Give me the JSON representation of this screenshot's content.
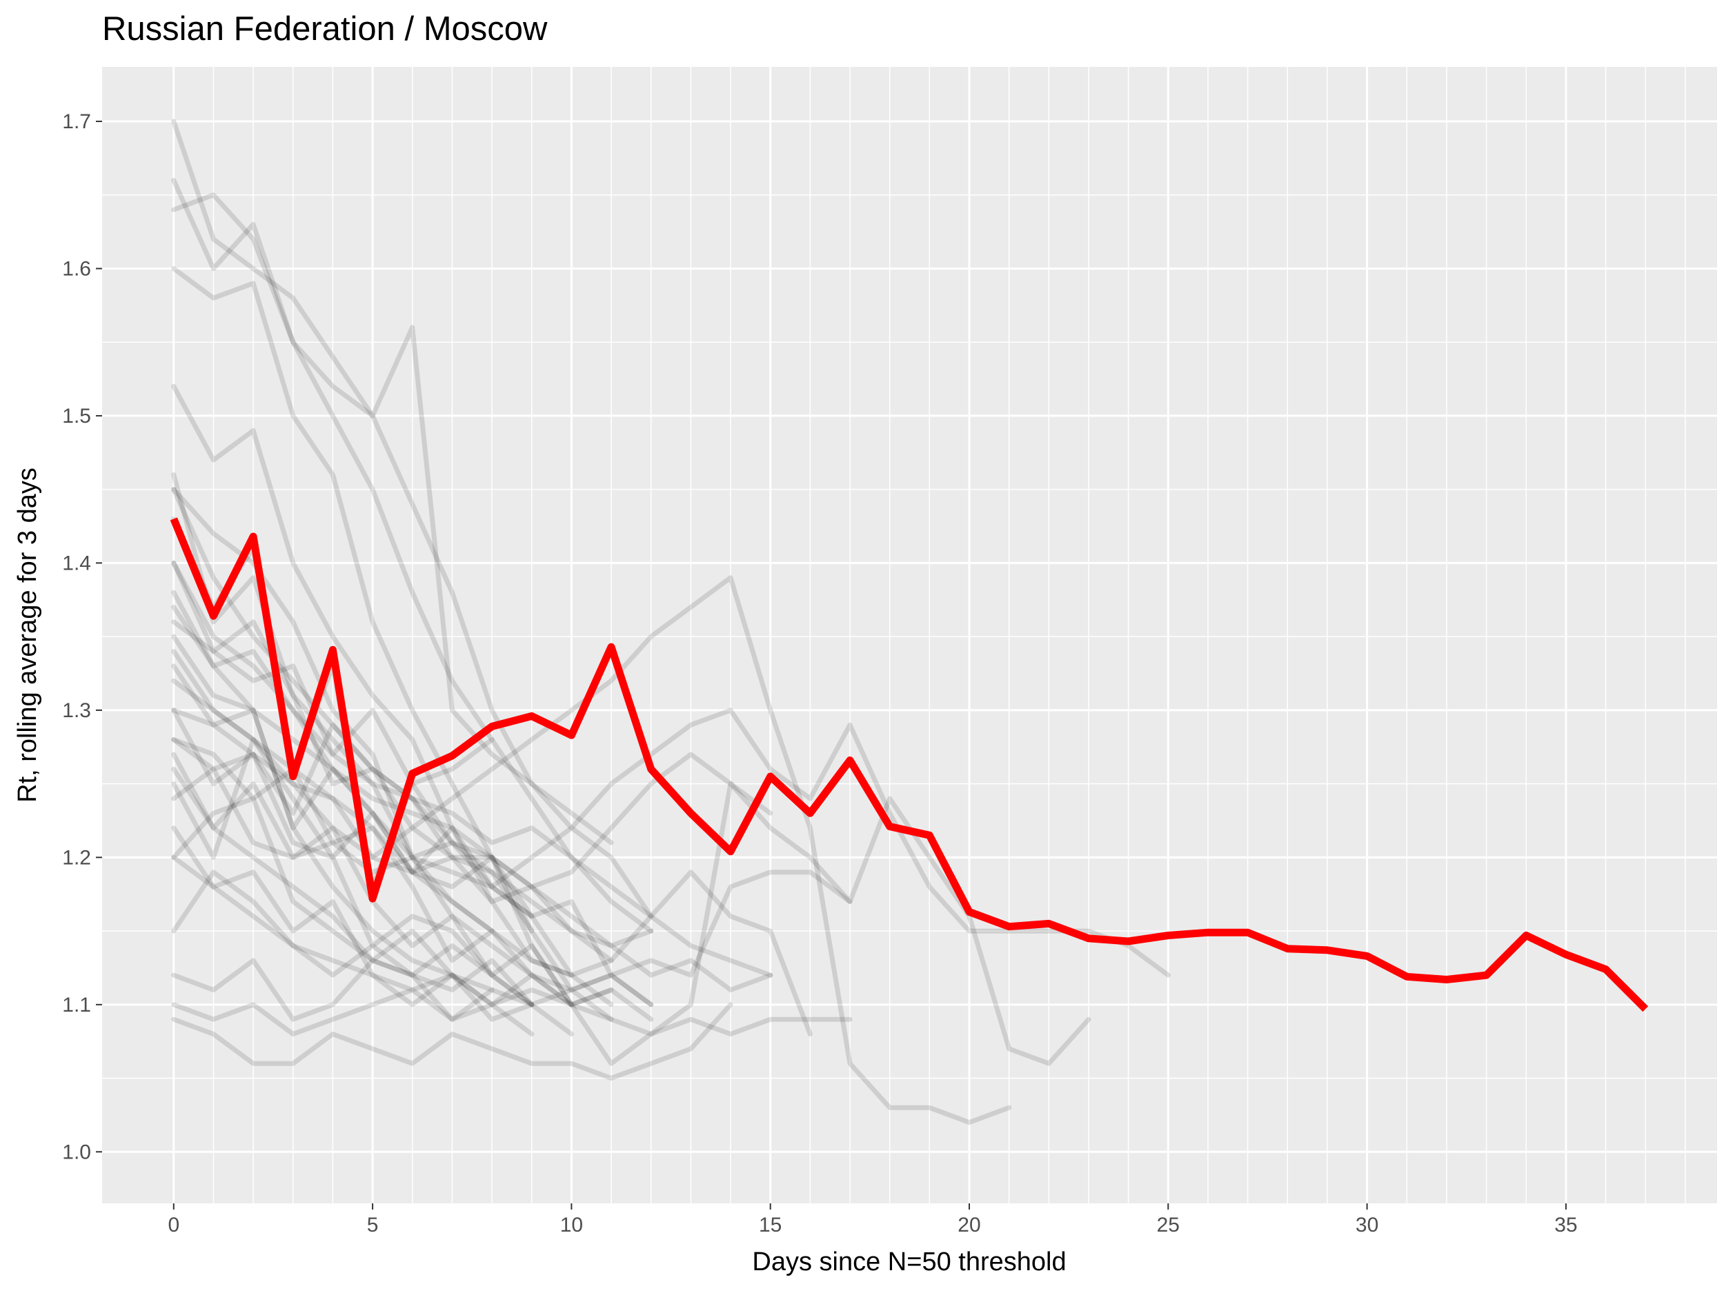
{
  "chart_data": {
    "type": "line",
    "title": "Russian Federation / Moscow",
    "xlabel": "Days since N=50 threshold",
    "ylabel": "Rt, rolling average for 3 days",
    "xlim": [
      -1.8,
      38.8
    ],
    "ylim": [
      0.965,
      1.737
    ],
    "x_ticks": [
      0,
      5,
      10,
      15,
      20,
      25,
      30,
      35
    ],
    "y_ticks": [
      1.0,
      1.1,
      1.2,
      1.3,
      1.4,
      1.5,
      1.6,
      1.7
    ],
    "grid": true,
    "legend": "none",
    "colors": {
      "panel": "#ebebeb",
      "grid": "#ffffff",
      "highlight": "#ff0000",
      "background_lines": "#000000"
    },
    "highlight_series": {
      "name": "Moscow",
      "x": [
        0,
        1,
        2,
        3,
        4,
        5,
        6,
        7,
        8,
        9,
        10,
        11,
        12,
        13,
        14,
        15,
        16,
        17,
        18,
        19,
        20,
        21,
        22,
        23,
        24,
        25,
        26,
        27,
        28,
        29,
        30,
        31,
        32,
        33,
        34,
        35,
        36,
        37
      ],
      "values": [
        1.43,
        1.364,
        1.418,
        1.255,
        1.341,
        1.172,
        1.257,
        1.269,
        1.289,
        1.296,
        1.283,
        1.343,
        1.26,
        1.23,
        1.204,
        1.255,
        1.23,
        1.266,
        1.221,
        1.215,
        1.163,
        1.153,
        1.155,
        1.145,
        1.143,
        1.147,
        1.149,
        1.149,
        1.138,
        1.137,
        1.133,
        1.119,
        1.117,
        1.12,
        1.147,
        1.134,
        1.124,
        1.097
      ]
    },
    "background_series": [
      {
        "values": [
          1.43,
          1.37,
          1.41,
          1.26,
          1.33,
          1.18,
          1.25,
          1.26,
          1.28
        ]
      },
      {
        "values": [
          1.38,
          1.33,
          1.3,
          1.22,
          1.18,
          1.15,
          1.13,
          1.12,
          1.11,
          1.1
        ]
      },
      {
        "values": [
          1.27,
          1.22,
          1.2,
          1.18,
          1.16,
          1.13,
          1.12,
          1.11,
          1.13,
          1.1
        ]
      },
      {
        "values": [
          1.25,
          1.2,
          1.28,
          1.24,
          1.2,
          1.14,
          1.16,
          1.15,
          1.12,
          1.1,
          1.11,
          1.09
        ]
      },
      {
        "values": [
          1.33,
          1.29,
          1.27,
          1.21,
          1.2,
          1.23,
          1.19,
          1.18,
          1.2,
          1.15
        ]
      },
      {
        "values": [
          1.46,
          1.36,
          1.39,
          1.31,
          1.25,
          1.26,
          1.22,
          1.2,
          1.17,
          1.18,
          1.15,
          1.13
        ]
      },
      {
        "values": [
          1.2,
          1.23,
          1.24,
          1.17,
          1.15,
          1.13,
          1.15,
          1.12,
          1.09,
          1.1
        ]
      },
      {
        "values": [
          1.12,
          1.11,
          1.13,
          1.09,
          1.1,
          1.13,
          1.12,
          1.14,
          1.12,
          1.1,
          1.08
        ]
      },
      {
        "values": [
          1.09,
          1.08,
          1.06,
          1.06,
          1.08,
          1.07,
          1.06,
          1.08,
          1.07,
          1.06,
          1.06,
          1.05,
          1.06,
          1.07,
          1.1
        ]
      },
      {
        "values": [
          1.35,
          1.31,
          1.3,
          1.22,
          1.26,
          1.23,
          1.19,
          1.22,
          1.17,
          1.13,
          1.12
        ]
      },
      {
        "values": [
          1.3,
          1.25,
          1.27,
          1.23,
          1.29,
          1.26,
          1.24,
          1.21,
          1.19,
          1.15,
          1.11,
          1.12,
          1.1
        ]
      },
      {
        "values": [
          1.22,
          1.18,
          1.19,
          1.15,
          1.17,
          1.12,
          1.1,
          1.12,
          1.1,
          1.08
        ]
      },
      {
        "values": [
          1.4,
          1.35,
          1.33,
          1.3,
          1.27,
          1.25,
          1.2,
          1.21,
          1.18,
          1.16,
          1.17,
          1.12,
          1.1
        ]
      },
      {
        "values": [
          1.28,
          1.27,
          1.24,
          1.26,
          1.21,
          1.22,
          1.18,
          1.13,
          1.15,
          1.12,
          1.1,
          1.11,
          1.09
        ]
      },
      {
        "values": [
          1.36,
          1.34,
          1.32,
          1.33,
          1.27,
          1.3,
          1.25,
          1.21,
          1.2,
          1.18,
          1.16,
          1.14,
          1.15
        ]
      },
      {
        "values": [
          1.15,
          1.19,
          1.17,
          1.14,
          1.12,
          1.14,
          1.12,
          1.09,
          1.11
        ]
      },
      {
        "values": [
          1.24,
          1.26,
          1.21,
          1.2,
          1.22,
          1.17,
          1.14,
          1.16,
          1.12,
          1.14,
          1.1,
          1.11
        ]
      },
      {
        "values": [
          1.32,
          1.3,
          1.28,
          1.26,
          1.24,
          1.2,
          1.19,
          1.17,
          1.15
        ]
      },
      {
        "values": [
          1.7,
          1.62,
          1.6,
          1.58,
          1.54,
          1.5,
          1.44,
          1.38,
          1.3,
          1.25,
          1.22,
          1.2,
          1.16
        ]
      },
      {
        "values": [
          1.66,
          1.6,
          1.63,
          1.55,
          1.5,
          1.45,
          1.38,
          1.32,
          1.28,
          1.24,
          1.2,
          1.17,
          1.15
        ]
      },
      {
        "values": [
          1.6,
          1.58,
          1.59,
          1.5,
          1.46,
          1.36,
          1.3,
          1.25,
          1.2,
          1.16,
          1.12,
          1.1
        ]
      },
      {
        "values": [
          1.45,
          1.42,
          1.4,
          1.36,
          1.3,
          1.27,
          1.2,
          1.16,
          1.14,
          1.12,
          1.1
        ]
      },
      {
        "values": [
          1.52,
          1.47,
          1.49,
          1.4,
          1.35,
          1.31,
          1.28,
          1.22,
          1.18,
          1.16
        ]
      },
      {
        "values": [
          1.64,
          1.65,
          1.62,
          1.55,
          1.52,
          1.5,
          1.56,
          1.3,
          1.27,
          1.25,
          1.23,
          1.21
        ]
      },
      {
        "values": [
          1.4,
          1.34,
          1.36,
          1.31,
          1.28,
          1.25,
          1.24,
          1.2,
          1.19,
          1.17,
          1.15,
          1.14,
          1.12,
          1.13,
          1.11,
          1.12
        ]
      },
      {
        "values": [
          1.3,
          1.29,
          1.3,
          1.28,
          1.26,
          1.24,
          1.23,
          1.22,
          1.2,
          1.18,
          1.19,
          1.22,
          1.25,
          1.27,
          1.25,
          1.22,
          1.2,
          1.17,
          1.24,
          1.2,
          1.16,
          1.07,
          1.06,
          1.09
        ]
      },
      {
        "values": [
          1.28,
          1.26,
          1.27,
          1.25,
          1.22,
          1.2,
          1.22,
          1.24,
          1.26,
          1.28,
          1.3,
          1.32,
          1.35,
          1.37,
          1.39,
          1.3,
          1.22,
          1.06,
          1.03,
          1.03,
          1.02,
          1.03
        ]
      },
      {
        "values": [
          1.26,
          1.22,
          1.25,
          1.2,
          1.21,
          1.19,
          1.2,
          1.19,
          1.18,
          1.2,
          1.22,
          1.25,
          1.27,
          1.29,
          1.3,
          1.26,
          1.24,
          1.29,
          1.23,
          1.18,
          1.15,
          1.15,
          1.15,
          1.15,
          1.14,
          1.12
        ]
      },
      {
        "values": [
          1.2,
          1.18,
          1.16,
          1.14,
          1.13,
          1.12,
          1.11,
          1.12,
          1.1,
          1.11,
          1.1,
          1.09,
          1.08,
          1.09,
          1.08,
          1.09,
          1.09,
          1.09
        ]
      },
      {
        "values": [
          1.1,
          1.09,
          1.1,
          1.08,
          1.09,
          1.1,
          1.11,
          1.09,
          1.1,
          1.12,
          1.11,
          1.12,
          1.13,
          1.12,
          1.18,
          1.19,
          1.19,
          1.17
        ]
      },
      {
        "values": [
          1.37,
          1.33,
          1.34,
          1.3,
          1.26,
          1.23,
          1.2,
          1.17,
          1.15,
          1.13,
          1.12,
          1.13,
          1.16,
          1.19,
          1.16,
          1.15,
          1.08
        ]
      },
      {
        "values": [
          1.45,
          1.39,
          1.35,
          1.32,
          1.29,
          1.26,
          1.24,
          1.23,
          1.21,
          1.22,
          1.2,
          1.18,
          1.16,
          1.14,
          1.13,
          1.12
        ]
      },
      {
        "values": [
          1.34,
          1.3,
          1.28,
          1.25,
          1.24,
          1.22,
          1.19,
          1.2,
          1.2,
          1.14,
          1.1,
          1.06,
          1.08,
          1.1,
          1.25,
          1.23
        ]
      }
    ]
  }
}
